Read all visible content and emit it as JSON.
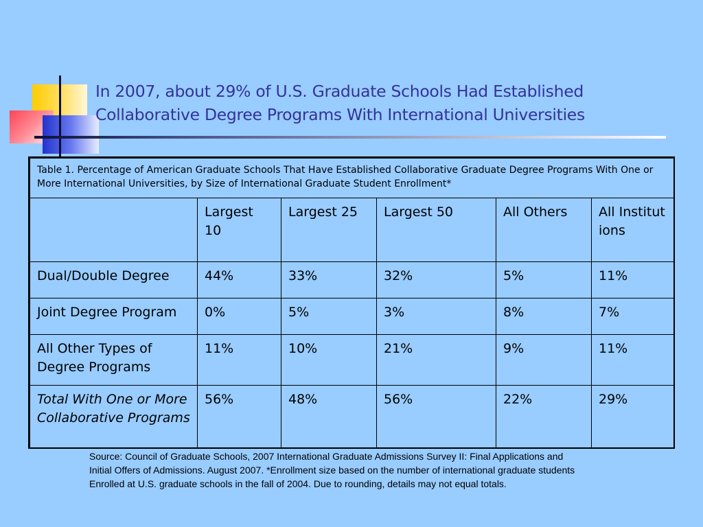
{
  "title": {
    "line1": "In 2007, about 29% of U.S. Graduate Schools Had Established",
    "line2": "Collaborative Degree Programs With International Universities"
  },
  "table": {
    "caption": "Table 1. Percentage of American Graduate Schools That Have Established Collaborative Graduate Degree Programs With One or More International Universities, by Size of International Graduate Student Enrollment*",
    "headers": [
      "",
      "Largest 10",
      "Largest 25",
      "Largest 50",
      "All Others",
      "All Institutions"
    ],
    "rows": [
      {
        "label": "Dual/Double Degree",
        "values": [
          "44%",
          "33%",
          "32%",
          "5%",
          "11%"
        ]
      },
      {
        "label": "Joint Degree Program",
        "values": [
          "0%",
          "5%",
          "3%",
          "8%",
          "7%"
        ]
      },
      {
        "label": "All Other Types of Degree Programs",
        "values": [
          "11%",
          "10%",
          "21%",
          "9%",
          "11%"
        ]
      },
      {
        "label": "Total With One or More Collaborative Programs",
        "values": [
          "56%",
          "48%",
          "56%",
          "22%",
          "29%"
        ]
      }
    ]
  },
  "source": {
    "line1": "Source: Council of Graduate Schools, 2007 International Graduate Admissions Survey II: Final Applications and",
    "line2": "Initial Offers of Admissions. August 2007. *Enrollment size based on the number of international graduate students",
    "line3": "Enrolled at U.S. graduate schools in the fall of 2004. Due to rounding, details may not equal totals."
  }
}
